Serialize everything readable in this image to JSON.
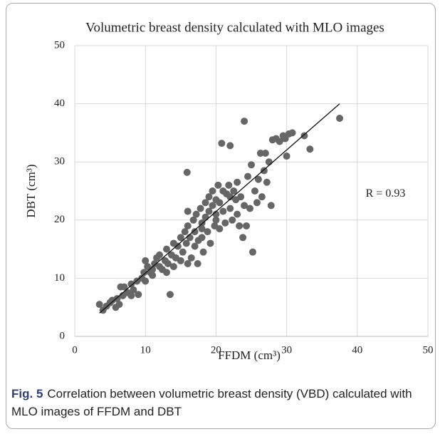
{
  "chart_data": {
    "type": "scatter",
    "title": "Volumetric  breast  density  calculated  with  MLO images",
    "xlabel": "FFDM (cm³)",
    "ylabel": "DBT (cm³)",
    "xlim": [
      0,
      50
    ],
    "ylim": [
      0,
      50
    ],
    "xticks": [
      0,
      10,
      20,
      30,
      40,
      50
    ],
    "yticks": [
      0,
      10,
      20,
      30,
      40,
      50
    ],
    "grid": true,
    "color": "#666666",
    "annotation": {
      "text": "R = 0.93",
      "x": 44,
      "y": 24.5
    },
    "trendline": {
      "x": [
        3.5,
        37.5
      ],
      "y": [
        4,
        40
      ]
    },
    "points": [
      [
        3.5,
        5.5
      ],
      [
        4,
        4.5
      ],
      [
        4.5,
        5.2
      ],
      [
        5,
        5.8
      ],
      [
        5.3,
        6.2
      ],
      [
        5.8,
        5.0
      ],
      [
        6,
        6.5
      ],
      [
        6.3,
        5.5
      ],
      [
        6.8,
        7
      ],
      [
        7,
        8.5
      ],
      [
        7.5,
        7.5
      ],
      [
        8,
        9
      ],
      [
        8.3,
        8
      ],
      [
        8.8,
        9.5
      ],
      [
        9,
        7.2
      ],
      [
        9.5,
        10
      ],
      [
        9.8,
        11
      ],
      [
        10,
        9.5
      ],
      [
        10.3,
        12
      ],
      [
        10.7,
        11
      ],
      [
        11,
        10.5
      ],
      [
        11.3,
        12.5
      ],
      [
        11.6,
        13.5
      ],
      [
        12,
        12
      ],
      [
        12,
        14
      ],
      [
        12.4,
        11.5
      ],
      [
        12.8,
        13
      ],
      [
        13,
        15
      ],
      [
        13.2,
        12.5
      ],
      [
        13.5,
        7.2
      ],
      [
        13.7,
        14
      ],
      [
        14,
        16
      ],
      [
        14,
        12
      ],
      [
        14.3,
        13.5
      ],
      [
        14.6,
        15.5
      ],
      [
        15,
        17
      ],
      [
        15,
        13
      ],
      [
        15.3,
        14.5
      ],
      [
        15.6,
        18
      ],
      [
        15.8,
        16
      ],
      [
        15.9,
        28.2
      ],
      [
        16,
        21.5
      ],
      [
        16,
        19
      ],
      [
        16.3,
        17
      ],
      [
        16.5,
        13.5
      ],
      [
        16.8,
        20
      ],
      [
        17,
        18
      ],
      [
        17,
        15.5
      ],
      [
        17.2,
        21
      ],
      [
        17.4,
        12.5
      ],
      [
        17.5,
        16.5
      ],
      [
        17.8,
        22
      ],
      [
        18,
        19.5
      ],
      [
        18,
        17
      ],
      [
        18.2,
        14.5
      ],
      [
        18.5,
        23
      ],
      [
        18.5,
        20.5
      ],
      [
        18.8,
        18
      ],
      [
        19,
        24
      ],
      [
        19,
        21.5
      ],
      [
        19.2,
        16
      ],
      [
        19.5,
        22.5
      ],
      [
        19.5,
        25
      ],
      [
        19.8,
        19
      ],
      [
        20,
        23.5
      ],
      [
        20,
        21
      ],
      [
        20.3,
        26
      ],
      [
        20.5,
        18.5
      ],
      [
        20.5,
        23
      ],
      [
        20.8,
        33.2
      ],
      [
        21,
        25
      ],
      [
        21,
        21.5
      ],
      [
        21.3,
        19.5
      ],
      [
        21.5,
        24.5
      ],
      [
        21.8,
        26
      ],
      [
        22,
        22
      ],
      [
        22,
        32.8
      ],
      [
        22.3,
        20
      ],
      [
        22.5,
        25
      ],
      [
        22.8,
        23.5
      ],
      [
        23,
        21
      ],
      [
        23,
        26.5
      ],
      [
        23.3,
        19
      ],
      [
        23.5,
        24
      ],
      [
        23.8,
        17
      ],
      [
        24,
        37
      ],
      [
        24,
        22.5
      ],
      [
        24.3,
        19
      ],
      [
        24.5,
        27.5
      ],
      [
        24.8,
        22
      ],
      [
        25,
        29.5
      ],
      [
        25.2,
        14.5
      ],
      [
        25.5,
        25
      ],
      [
        25.8,
        23
      ],
      [
        26,
        27
      ],
      [
        26.3,
        31.5
      ],
      [
        26.5,
        24
      ],
      [
        26.8,
        28.5
      ],
      [
        27,
        31.5
      ],
      [
        27.2,
        26.5
      ],
      [
        27.5,
        30
      ],
      [
        27.8,
        22.5
      ],
      [
        28,
        33.8
      ],
      [
        28.5,
        34
      ],
      [
        29,
        33.5
      ],
      [
        29.5,
        34.5
      ],
      [
        29.8,
        34
      ],
      [
        30,
        31
      ],
      [
        30.3,
        34.8
      ],
      [
        30.8,
        35
      ],
      [
        32.5,
        34.5
      ],
      [
        33.3,
        32.2
      ],
      [
        37.5,
        37.5
      ],
      [
        6.5,
        8.5
      ],
      [
        8,
        7
      ],
      [
        10,
        13
      ],
      [
        11,
        11.5
      ],
      [
        13,
        11
      ],
      [
        16,
        12.5
      ],
      [
        20,
        20
      ],
      [
        22,
        24
      ],
      [
        18,
        18.5
      ]
    ]
  },
  "caption": {
    "label": "Fig. 5",
    "text": "Correlation between volumetric breast density (VBD) calculated with MLO images of FFDM and DBT"
  }
}
